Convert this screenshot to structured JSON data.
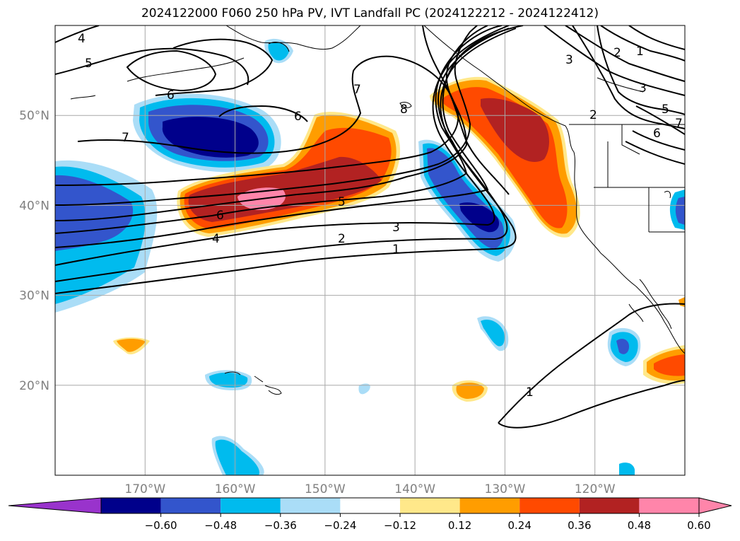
{
  "title": "2024122000 F060 250 hPa PV, IVT Landfall PC (2024122212 - 2024122412)",
  "map": {
    "lon_range": [
      -180,
      -110
    ],
    "lat_range": [
      10,
      60
    ],
    "lon_ticks": [
      {
        "lon": -170,
        "label": "170°W"
      },
      {
        "lon": -160,
        "label": "160°W"
      },
      {
        "lon": -150,
        "label": "150°W"
      },
      {
        "lon": -140,
        "label": "140°W"
      },
      {
        "lon": -130,
        "label": "130°W"
      },
      {
        "lon": -120,
        "label": "120°W"
      }
    ],
    "lat_ticks": [
      {
        "lat": 20,
        "label": "20°N"
      },
      {
        "lat": 30,
        "label": "30°N"
      },
      {
        "lat": 40,
        "label": "40°N"
      },
      {
        "lat": 50,
        "label": "50°N"
      }
    ],
    "gridlines": true,
    "contour_labels": [
      "4",
      "5",
      "6",
      "7",
      "7",
      "6",
      "4",
      "8",
      "5",
      "6",
      "4",
      "3",
      "2",
      "1",
      "2",
      "3",
      "2",
      "1",
      "3",
      "5",
      "6",
      "7",
      "1"
    ]
  },
  "colorbar": {
    "ticks": [
      "−0.60",
      "−0.48",
      "−0.36",
      "−0.24",
      "−0.12",
      "0.12",
      "0.24",
      "0.36",
      "0.48",
      "0.60"
    ],
    "colors": [
      "#9933cc",
      "#00008b",
      "#3355cc",
      "#00bbee",
      "#aaddf7",
      "#ffffff",
      "#ffe88a",
      "#ff9d00",
      "#ff4a00",
      "#b22222",
      "#ff85aa",
      "#ff85aa"
    ]
  }
}
